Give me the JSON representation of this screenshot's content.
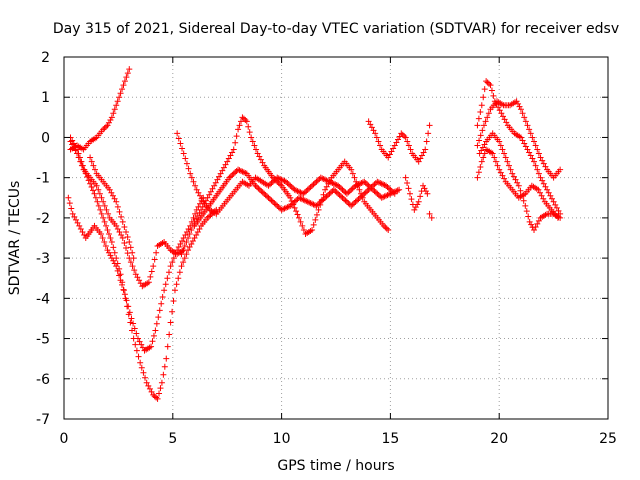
{
  "chart_data": {
    "type": "scatter",
    "title": "Day 315 of 2021, Sidereal Day-to-day VTEC variation (SDTVAR) for receiver edsv",
    "xlabel": "GPS time / hours",
    "ylabel": "SDTVAR / TECUs",
    "xlim": [
      0,
      25
    ],
    "ylim": [
      -7,
      2
    ],
    "xticks": [
      0,
      5,
      10,
      15,
      20,
      25
    ],
    "yticks": [
      2,
      1,
      0,
      -1,
      -2,
      -3,
      -4,
      -5,
      -6,
      -7
    ],
    "grid": true,
    "marker": "+",
    "color": "#ff0000",
    "series": [
      {
        "points": [
          [
            0.3,
            -0.1
          ],
          [
            0.6,
            -0.4
          ],
          [
            0.9,
            -0.8
          ],
          [
            1.2,
            -1.0
          ],
          [
            1.5,
            -1.2
          ],
          [
            1.8,
            -1.6
          ],
          [
            2.1,
            -2.0
          ],
          [
            2.4,
            -2.2
          ],
          [
            2.7,
            -2.5
          ],
          [
            3.0,
            -3.0
          ],
          [
            3.3,
            -3.4
          ],
          [
            3.6,
            -3.7
          ],
          [
            3.9,
            -3.6
          ],
          [
            4.1,
            -3.2
          ],
          [
            4.3,
            -2.7
          ],
          [
            4.6,
            -2.6
          ],
          [
            4.9,
            -2.8
          ],
          [
            5.2,
            -2.9
          ],
          [
            5.5,
            -2.8
          ]
        ]
      },
      {
        "points": [
          [
            0.3,
            0.0
          ],
          [
            0.6,
            -0.3
          ],
          [
            1.0,
            -0.9
          ],
          [
            1.4,
            -1.4
          ],
          [
            1.8,
            -2.0
          ],
          [
            2.2,
            -2.6
          ],
          [
            2.6,
            -3.4
          ],
          [
            2.9,
            -4.2
          ],
          [
            3.2,
            -5.0
          ],
          [
            3.5,
            -5.6
          ],
          [
            3.8,
            -6.1
          ],
          [
            4.1,
            -6.4
          ],
          [
            4.3,
            -6.5
          ],
          [
            4.5,
            -6.1
          ],
          [
            4.7,
            -5.5
          ],
          [
            4.9,
            -4.6
          ],
          [
            5.1,
            -3.8
          ],
          [
            5.4,
            -3.2
          ],
          [
            5.7,
            -2.8
          ],
          [
            6.0,
            -2.5
          ],
          [
            6.3,
            -2.2
          ],
          [
            6.6,
            -2.0
          ],
          [
            7.0,
            -1.8
          ]
        ]
      },
      {
        "points": [
          [
            0.2,
            -1.5
          ],
          [
            0.4,
            -1.9
          ],
          [
            0.7,
            -2.2
          ],
          [
            1.0,
            -2.5
          ],
          [
            1.4,
            -2.2
          ],
          [
            1.7,
            -2.4
          ],
          [
            2.0,
            -2.8
          ],
          [
            2.4,
            -3.2
          ],
          [
            2.8,
            -3.9
          ],
          [
            3.1,
            -4.5
          ],
          [
            3.4,
            -5.0
          ],
          [
            3.7,
            -5.3
          ],
          [
            4.0,
            -5.2
          ],
          [
            4.2,
            -4.8
          ],
          [
            4.4,
            -4.3
          ],
          [
            4.6,
            -3.8
          ],
          [
            4.9,
            -3.2
          ],
          [
            5.2,
            -2.8
          ],
          [
            5.5,
            -2.5
          ],
          [
            5.8,
            -2.2
          ],
          [
            6.1,
            -1.8
          ],
          [
            6.4,
            -1.5
          ]
        ]
      },
      {
        "points": [
          [
            0.3,
            -0.3
          ],
          [
            0.6,
            -0.2
          ],
          [
            0.9,
            -0.3
          ],
          [
            1.2,
            -0.1
          ],
          [
            1.5,
            0.0
          ],
          [
            1.8,
            0.2
          ],
          [
            2.0,
            0.3
          ],
          [
            2.2,
            0.5
          ],
          [
            2.4,
            0.8
          ],
          [
            2.6,
            1.1
          ],
          [
            2.8,
            1.4
          ],
          [
            3.0,
            1.7
          ]
        ]
      },
      {
        "points": [
          [
            1.2,
            -0.5
          ],
          [
            1.5,
            -0.9
          ],
          [
            1.8,
            -1.1
          ],
          [
            2.1,
            -1.3
          ],
          [
            2.4,
            -1.6
          ],
          [
            2.7,
            -2.1
          ],
          [
            3.0,
            -2.6
          ],
          [
            3.2,
            -3.0
          ]
        ]
      },
      {
        "points": [
          [
            5.2,
            0.1
          ],
          [
            5.5,
            -0.4
          ],
          [
            5.8,
            -0.9
          ],
          [
            6.1,
            -1.3
          ],
          [
            6.4,
            -1.6
          ],
          [
            6.7,
            -1.8
          ],
          [
            7.0,
            -1.9
          ],
          [
            7.3,
            -1.7
          ],
          [
            7.6,
            -1.5
          ],
          [
            7.9,
            -1.3
          ],
          [
            8.2,
            -1.1
          ],
          [
            8.5,
            -1.2
          ],
          [
            8.8,
            -1.0
          ],
          [
            9.1,
            -1.1
          ],
          [
            9.4,
            -1.2
          ],
          [
            9.8,
            -1.0
          ],
          [
            10.2,
            -1.1
          ],
          [
            10.6,
            -1.3
          ],
          [
            11.0,
            -1.4
          ],
          [
            11.4,
            -1.2
          ],
          [
            11.8,
            -1.0
          ],
          [
            12.2,
            -1.1
          ],
          [
            12.6,
            -1.2
          ],
          [
            13.0,
            -1.4
          ],
          [
            13.4,
            -1.2
          ],
          [
            13.8,
            -1.1
          ],
          [
            14.2,
            -1.3
          ],
          [
            14.6,
            -1.5
          ],
          [
            15.0,
            -1.4
          ],
          [
            15.4,
            -1.3
          ]
        ]
      },
      {
        "points": [
          [
            5.4,
            -2.9
          ],
          [
            5.7,
            -2.5
          ],
          [
            6.0,
            -2.1
          ],
          [
            6.3,
            -1.8
          ],
          [
            6.6,
            -1.5
          ],
          [
            6.9,
            -1.2
          ],
          [
            7.2,
            -0.9
          ],
          [
            7.5,
            -0.6
          ],
          [
            7.8,
            -0.3
          ],
          [
            8.0,
            0.2
          ],
          [
            8.2,
            0.5
          ],
          [
            8.4,
            0.4
          ],
          [
            8.6,
            0.0
          ],
          [
            8.9,
            -0.4
          ],
          [
            9.2,
            -0.7
          ],
          [
            9.6,
            -1.0
          ],
          [
            10.0,
            -1.2
          ],
          [
            10.4,
            -1.5
          ],
          [
            10.8,
            -2.0
          ],
          [
            11.1,
            -2.4
          ],
          [
            11.4,
            -2.3
          ],
          [
            11.7,
            -1.8
          ],
          [
            12.0,
            -1.3
          ],
          [
            12.3,
            -1.0
          ],
          [
            12.6,
            -0.8
          ],
          [
            12.9,
            -0.6
          ],
          [
            13.2,
            -0.8
          ],
          [
            13.5,
            -1.2
          ],
          [
            13.8,
            -1.6
          ],
          [
            14.1,
            -1.8
          ],
          [
            14.4,
            -2.0
          ],
          [
            14.7,
            -2.2
          ],
          [
            14.9,
            -2.3
          ]
        ]
      },
      {
        "points": [
          [
            6.0,
            -2.2
          ],
          [
            6.4,
            -1.9
          ],
          [
            6.8,
            -1.6
          ],
          [
            7.2,
            -1.3
          ],
          [
            7.6,
            -1.0
          ],
          [
            8.0,
            -0.8
          ],
          [
            8.4,
            -0.9
          ],
          [
            8.8,
            -1.2
          ],
          [
            9.2,
            -1.4
          ],
          [
            9.6,
            -1.6
          ],
          [
            10.0,
            -1.8
          ],
          [
            10.4,
            -1.7
          ],
          [
            10.8,
            -1.5
          ],
          [
            11.2,
            -1.6
          ],
          [
            11.6,
            -1.7
          ],
          [
            12.0,
            -1.5
          ],
          [
            12.4,
            -1.3
          ],
          [
            12.8,
            -1.5
          ],
          [
            13.2,
            -1.7
          ],
          [
            13.6,
            -1.5
          ],
          [
            14.0,
            -1.3
          ],
          [
            14.4,
            -1.1
          ],
          [
            14.8,
            -1.2
          ],
          [
            15.2,
            -1.4
          ]
        ]
      },
      {
        "points": [
          [
            14.0,
            0.4
          ],
          [
            14.3,
            0.1
          ],
          [
            14.6,
            -0.3
          ],
          [
            14.9,
            -0.5
          ],
          [
            15.2,
            -0.2
          ],
          [
            15.5,
            0.1
          ],
          [
            15.7,
            0.0
          ],
          [
            16.0,
            -0.4
          ],
          [
            16.3,
            -0.6
          ],
          [
            16.6,
            -0.3
          ],
          [
            16.8,
            0.3
          ]
        ]
      },
      {
        "points": [
          [
            15.7,
            -1.0
          ],
          [
            15.9,
            -1.4
          ],
          [
            16.1,
            -1.8
          ],
          [
            16.3,
            -1.6
          ],
          [
            16.5,
            -1.2
          ],
          [
            16.7,
            -1.4
          ],
          [
            16.8,
            -1.9
          ],
          [
            16.9,
            -2.0
          ]
        ]
      },
      {
        "points": [
          [
            19.0,
            0.3
          ],
          [
            19.2,
            0.8
          ],
          [
            19.4,
            1.4
          ],
          [
            19.6,
            1.3
          ],
          [
            19.8,
            0.9
          ],
          [
            20.1,
            0.6
          ],
          [
            20.4,
            0.3
          ],
          [
            20.7,
            0.1
          ],
          [
            21.0,
            0.0
          ],
          [
            21.3,
            -0.3
          ],
          [
            21.6,
            -0.6
          ],
          [
            21.9,
            -1.0
          ],
          [
            22.2,
            -1.3
          ],
          [
            22.5,
            -1.6
          ],
          [
            22.8,
            -1.9
          ]
        ]
      },
      {
        "points": [
          [
            19.0,
            -0.2
          ],
          [
            19.3,
            0.3
          ],
          [
            19.6,
            0.7
          ],
          [
            19.9,
            0.9
          ],
          [
            20.2,
            0.8
          ],
          [
            20.5,
            0.8
          ],
          [
            20.8,
            0.9
          ],
          [
            21.0,
            0.7
          ],
          [
            21.3,
            0.3
          ],
          [
            21.6,
            -0.1
          ],
          [
            21.9,
            -0.5
          ],
          [
            22.2,
            -0.8
          ],
          [
            22.5,
            -1.0
          ],
          [
            22.8,
            -0.8
          ]
        ]
      },
      {
        "points": [
          [
            19.0,
            -1.0
          ],
          [
            19.2,
            -0.6
          ],
          [
            19.4,
            -0.3
          ],
          [
            19.7,
            -0.4
          ],
          [
            20.0,
            -0.8
          ],
          [
            20.3,
            -1.1
          ],
          [
            20.6,
            -1.3
          ],
          [
            20.9,
            -1.5
          ],
          [
            21.2,
            -1.4
          ],
          [
            21.5,
            -1.2
          ],
          [
            21.8,
            -1.3
          ],
          [
            22.1,
            -1.6
          ],
          [
            22.4,
            -1.8
          ],
          [
            22.7,
            -2.0
          ]
        ]
      },
      {
        "points": [
          [
            19.1,
            -0.4
          ],
          [
            19.4,
            -0.1
          ],
          [
            19.7,
            0.1
          ],
          [
            20.0,
            -0.1
          ],
          [
            20.3,
            -0.5
          ],
          [
            20.6,
            -0.9
          ],
          [
            20.9,
            -1.2
          ],
          [
            21.2,
            -1.7
          ],
          [
            21.4,
            -2.1
          ],
          [
            21.6,
            -2.3
          ],
          [
            21.9,
            -2.0
          ],
          [
            22.2,
            -1.9
          ],
          [
            22.5,
            -1.9
          ],
          [
            22.8,
            -2.0
          ]
        ]
      }
    ]
  }
}
